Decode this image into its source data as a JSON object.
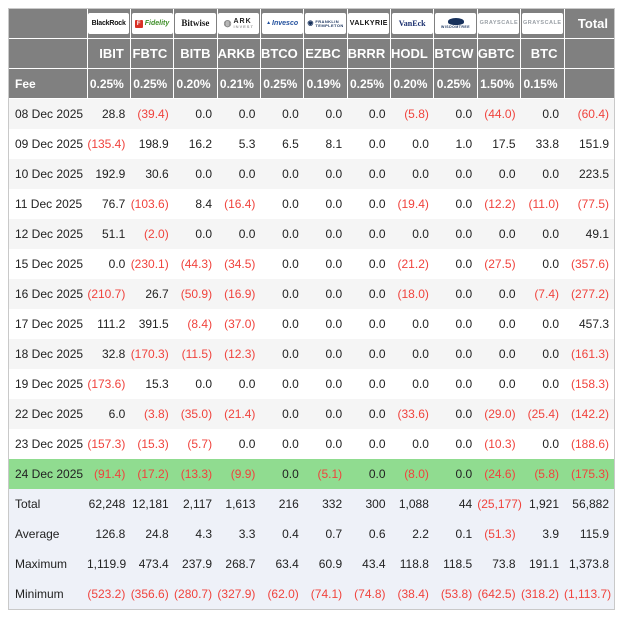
{
  "colors": {
    "header_gray": "#808080",
    "negative_red": "#F0433D",
    "highlight_green": "#90DC90",
    "stripe_gray": "#F5F5F5",
    "summary_blue": "#EEF1F8"
  },
  "table": {
    "fee_label": "Fee",
    "total_label": "Total",
    "providers": [
      {
        "id": "blackrock",
        "name": "BlackRock",
        "ticker": "IBIT",
        "fee": "0.25%",
        "logo_parts": [
          {
            "t": "BlackRock",
            "c": "lg-blackrock"
          }
        ]
      },
      {
        "id": "fidelity",
        "name": "Fidelity",
        "ticker": "FBTC",
        "fee": "0.25%",
        "logo_parts": [
          {
            "t": "F",
            "c": "lg-fid-icon"
          },
          {
            "t": "Fidelity",
            "c": "lg-fidelity"
          }
        ]
      },
      {
        "id": "bitwise",
        "name": "Bitwise",
        "ticker": "BITB",
        "fee": "0.20%",
        "logo_parts": [
          {
            "t": "Bitwise",
            "c": "lg-bitwise"
          }
        ]
      },
      {
        "id": "ark",
        "name": "ARK Invest",
        "ticker": "ARKB",
        "fee": "0.21%",
        "logo_parts": [
          {
            "t": "◍",
            "c": "lg-ark-icon"
          },
          {
            "t": "ARK",
            "c": "lg-ark"
          },
          {
            "t": "INVEST",
            "c": "lg-ark-sub"
          }
        ]
      },
      {
        "id": "invesco",
        "name": "Invesco",
        "ticker": "BTCO",
        "fee": "0.25%",
        "logo_parts": [
          {
            "t": "▲",
            "c": "lg-inv-icon"
          },
          {
            "t": "Invesco",
            "c": "lg-invesco"
          }
        ]
      },
      {
        "id": "franklin",
        "name": "Franklin Templeton",
        "ticker": "EZBC",
        "fee": "0.19%",
        "logo_parts": [
          {
            "t": "◉",
            "c": "lg-fr-icon"
          },
          {
            "t": "FRANKLIN",
            "c": "lg-fr1"
          },
          {
            "t": "TEMPLETON",
            "c": "lg-fr2"
          }
        ]
      },
      {
        "id": "valkyrie",
        "name": "Valkyrie",
        "ticker": "BRRR",
        "fee": "0.25%",
        "logo_parts": [
          {
            "t": "VALKYRIE",
            "c": "lg-valkyrie"
          }
        ]
      },
      {
        "id": "vaneck",
        "name": "VanEck",
        "ticker": "HODL",
        "fee": "0.20%",
        "logo_parts": [
          {
            "t": "VanEck",
            "c": "lg-vaneck"
          }
        ]
      },
      {
        "id": "wisdomtree",
        "name": "WisdomTree",
        "ticker": "BTCW",
        "fee": "0.25%",
        "logo_parts": [
          {
            "t": "",
            "c": "lg-wt-icon"
          },
          {
            "t": "WISDOMTREE",
            "c": "lg-wt"
          }
        ]
      },
      {
        "id": "grayscale-gbtc",
        "name": "Grayscale",
        "ticker": "GBTC",
        "fee": "1.50%",
        "logo_parts": [
          {
            "t": "GRAYSCALE",
            "c": "lg-grayscale"
          }
        ]
      },
      {
        "id": "grayscale-btc",
        "name": "Grayscale",
        "ticker": "BTC",
        "fee": "0.15%",
        "logo_parts": [
          {
            "t": "GRAYSCALE",
            "c": "lg-grayscale"
          }
        ]
      }
    ],
    "rows": [
      {
        "date": "08 Dec 2025",
        "highlight": false,
        "values": [
          "28.8",
          "(39.4)",
          "0.0",
          "0.0",
          "0.0",
          "0.0",
          "0.0",
          "(5.8)",
          "0.0",
          "(44.0)",
          "0.0",
          "(60.4)"
        ]
      },
      {
        "date": "09 Dec 2025",
        "highlight": false,
        "values": [
          "(135.4)",
          "198.9",
          "16.2",
          "5.3",
          "6.5",
          "8.1",
          "0.0",
          "0.0",
          "1.0",
          "17.5",
          "33.8",
          "151.9"
        ]
      },
      {
        "date": "10 Dec 2025",
        "highlight": false,
        "values": [
          "192.9",
          "30.6",
          "0.0",
          "0.0",
          "0.0",
          "0.0",
          "0.0",
          "0.0",
          "0.0",
          "0.0",
          "0.0",
          "223.5"
        ]
      },
      {
        "date": "11 Dec 2025",
        "highlight": false,
        "values": [
          "76.7",
          "(103.6)",
          "8.4",
          "(16.4)",
          "0.0",
          "0.0",
          "0.0",
          "(19.4)",
          "0.0",
          "(12.2)",
          "(11.0)",
          "(77.5)"
        ]
      },
      {
        "date": "12 Dec 2025",
        "highlight": false,
        "values": [
          "51.1",
          "(2.0)",
          "0.0",
          "0.0",
          "0.0",
          "0.0",
          "0.0",
          "0.0",
          "0.0",
          "0.0",
          "0.0",
          "49.1"
        ]
      },
      {
        "date": "15 Dec 2025",
        "highlight": false,
        "values": [
          "0.0",
          "(230.1)",
          "(44.3)",
          "(34.5)",
          "0.0",
          "0.0",
          "0.0",
          "(21.2)",
          "0.0",
          "(27.5)",
          "0.0",
          "(357.6)"
        ]
      },
      {
        "date": "16 Dec 2025",
        "highlight": false,
        "values": [
          "(210.7)",
          "26.7",
          "(50.9)",
          "(16.9)",
          "0.0",
          "0.0",
          "0.0",
          "(18.0)",
          "0.0",
          "0.0",
          "(7.4)",
          "(277.2)"
        ]
      },
      {
        "date": "17 Dec 2025",
        "highlight": false,
        "values": [
          "111.2",
          "391.5",
          "(8.4)",
          "(37.0)",
          "0.0",
          "0.0",
          "0.0",
          "0.0",
          "0.0",
          "0.0",
          "0.0",
          "457.3"
        ]
      },
      {
        "date": "18 Dec 2025",
        "highlight": false,
        "values": [
          "32.8",
          "(170.3)",
          "(11.5)",
          "(12.3)",
          "0.0",
          "0.0",
          "0.0",
          "0.0",
          "0.0",
          "0.0",
          "0.0",
          "(161.3)"
        ]
      },
      {
        "date": "19 Dec 2025",
        "highlight": false,
        "values": [
          "(173.6)",
          "15.3",
          "0.0",
          "0.0",
          "0.0",
          "0.0",
          "0.0",
          "0.0",
          "0.0",
          "0.0",
          "0.0",
          "(158.3)"
        ]
      },
      {
        "date": "22 Dec 2025",
        "highlight": false,
        "values": [
          "6.0",
          "(3.8)",
          "(35.0)",
          "(21.4)",
          "0.0",
          "0.0",
          "0.0",
          "(33.6)",
          "0.0",
          "(29.0)",
          "(25.4)",
          "(142.2)"
        ]
      },
      {
        "date": "23 Dec 2025",
        "highlight": false,
        "values": [
          "(157.3)",
          "(15.3)",
          "(5.7)",
          "0.0",
          "0.0",
          "0.0",
          "0.0",
          "0.0",
          "0.0",
          "(10.3)",
          "0.0",
          "(188.6)"
        ]
      },
      {
        "date": "24 Dec 2025",
        "highlight": true,
        "values": [
          "(91.4)",
          "(17.2)",
          "(13.3)",
          "(9.9)",
          "0.0",
          "(5.1)",
          "0.0",
          "(8.0)",
          "0.0",
          "(24.6)",
          "(5.8)",
          "(175.3)"
        ]
      }
    ],
    "summary": [
      {
        "label": "Total",
        "values": [
          "62,248",
          "12,181",
          "2,117",
          "1,613",
          "216",
          "332",
          "300",
          "1,088",
          "44",
          "(25,177)",
          "1,921",
          "56,882"
        ]
      },
      {
        "label": "Average",
        "values": [
          "126.8",
          "24.8",
          "4.3",
          "3.3",
          "0.4",
          "0.7",
          "0.6",
          "2.2",
          "0.1",
          "(51.3)",
          "3.9",
          "115.9"
        ]
      },
      {
        "label": "Maximum",
        "values": [
          "1,119.9",
          "473.4",
          "237.9",
          "268.7",
          "63.4",
          "60.9",
          "43.4",
          "118.8",
          "118.5",
          "73.8",
          "191.1",
          "1,373.8"
        ]
      },
      {
        "label": "Minimum",
        "values": [
          "(523.2)",
          "(356.6)",
          "(280.7)",
          "(327.9)",
          "(62.0)",
          "(74.1)",
          "(74.8)",
          "(38.4)",
          "(53.8)",
          "(642.5)",
          "(318.2)",
          "(1,113.7)"
        ]
      }
    ]
  }
}
